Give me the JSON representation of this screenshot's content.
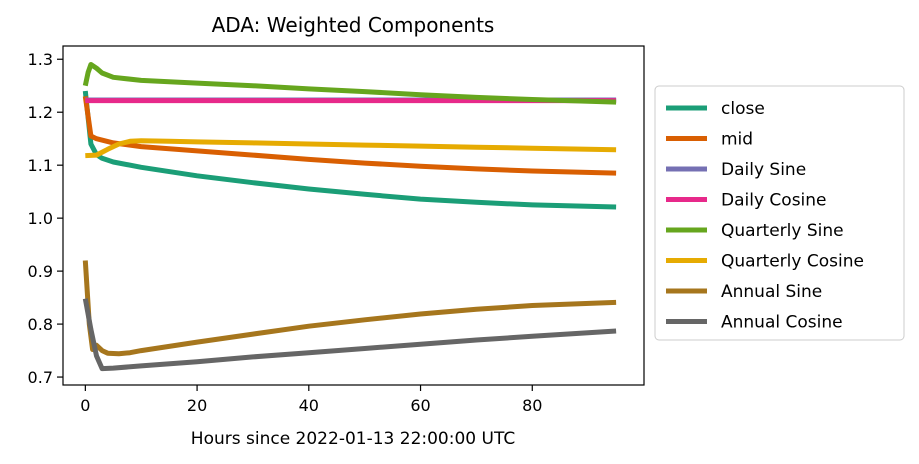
{
  "chart_data": {
    "type": "line",
    "title": "ADA: Weighted Components",
    "xlabel": "Hours since 2022-01-13 22:00:00 UTC",
    "ylabel": "",
    "xlim": [
      -4,
      100
    ],
    "ylim": [
      0.685,
      1.325
    ],
    "xticks": [
      0,
      20,
      40,
      60,
      80
    ],
    "yticks": [
      0.7,
      0.8,
      0.9,
      1.0,
      1.1,
      1.2,
      1.3
    ],
    "xtick_labels": [
      "0",
      "20",
      "40",
      "60",
      "80"
    ],
    "ytick_labels": [
      "0.7",
      "0.8",
      "0.9",
      "1.0",
      "1.1",
      "1.2",
      "1.3"
    ],
    "grid": false,
    "legend_position": "outside-right",
    "series": [
      {
        "name": "close",
        "color": "#1b9e77",
        "points": [
          [
            0,
            1.24
          ],
          [
            1,
            1.14
          ],
          [
            2,
            1.12
          ],
          [
            3,
            1.113
          ],
          [
            5,
            1.106
          ],
          [
            10,
            1.096
          ],
          [
            20,
            1.08
          ],
          [
            30,
            1.067
          ],
          [
            40,
            1.055
          ],
          [
            50,
            1.045
          ],
          [
            60,
            1.036
          ],
          [
            70,
            1.03
          ],
          [
            80,
            1.025
          ],
          [
            95,
            1.021
          ]
        ]
      },
      {
        "name": "mid",
        "color": "#d95f02",
        "points": [
          [
            0,
            1.23
          ],
          [
            1,
            1.155
          ],
          [
            2,
            1.15
          ],
          [
            5,
            1.142
          ],
          [
            10,
            1.135
          ],
          [
            20,
            1.127
          ],
          [
            30,
            1.119
          ],
          [
            40,
            1.111
          ],
          [
            50,
            1.104
          ],
          [
            60,
            1.098
          ],
          [
            70,
            1.093
          ],
          [
            80,
            1.089
          ],
          [
            95,
            1.085
          ]
        ]
      },
      {
        "name": "Daily Sine",
        "color": "#7570b3",
        "points": [
          [
            0,
            1.223
          ],
          [
            95,
            1.223
          ]
        ]
      },
      {
        "name": "Daily Cosine",
        "color": "#e7298a",
        "points": [
          [
            0,
            1.222
          ],
          [
            20,
            1.222
          ],
          [
            40,
            1.222
          ],
          [
            60,
            1.222
          ],
          [
            80,
            1.222
          ],
          [
            95,
            1.222
          ]
        ]
      },
      {
        "name": "Quarterly Sine",
        "color": "#66a61e",
        "points": [
          [
            0,
            1.25
          ],
          [
            0.5,
            1.275
          ],
          [
            1,
            1.29
          ],
          [
            2,
            1.283
          ],
          [
            3,
            1.274
          ],
          [
            5,
            1.266
          ],
          [
            10,
            1.26
          ],
          [
            20,
            1.255
          ],
          [
            30,
            1.25
          ],
          [
            40,
            1.244
          ],
          [
            50,
            1.239
          ],
          [
            60,
            1.233
          ],
          [
            70,
            1.228
          ],
          [
            80,
            1.224
          ],
          [
            95,
            1.219
          ]
        ]
      },
      {
        "name": "Quarterly Cosine",
        "color": "#e6ab02",
        "points": [
          [
            0,
            1.118
          ],
          [
            2,
            1.119
          ],
          [
            4,
            1.13
          ],
          [
            6,
            1.14
          ],
          [
            8,
            1.145
          ],
          [
            10,
            1.146
          ],
          [
            15,
            1.145
          ],
          [
            20,
            1.144
          ],
          [
            30,
            1.142
          ],
          [
            40,
            1.14
          ],
          [
            50,
            1.138
          ],
          [
            60,
            1.136
          ],
          [
            70,
            1.134
          ],
          [
            80,
            1.132
          ],
          [
            95,
            1.129
          ]
        ]
      },
      {
        "name": "Annual Sine",
        "color": "#a6761d",
        "points": [
          [
            0,
            0.92
          ],
          [
            0.7,
            0.8
          ],
          [
            1.3,
            0.752
          ],
          [
            2,
            0.76
          ],
          [
            3,
            0.75
          ],
          [
            4,
            0.745
          ],
          [
            6,
            0.744
          ],
          [
            8,
            0.746
          ],
          [
            10,
            0.75
          ],
          [
            20,
            0.766
          ],
          [
            30,
            0.781
          ],
          [
            40,
            0.796
          ],
          [
            50,
            0.808
          ],
          [
            60,
            0.819
          ],
          [
            70,
            0.828
          ],
          [
            80,
            0.835
          ],
          [
            95,
            0.841
          ]
        ]
      },
      {
        "name": "Annual Cosine",
        "color": "#666666",
        "points": [
          [
            0,
            0.848
          ],
          [
            1,
            0.79
          ],
          [
            2,
            0.74
          ],
          [
            3,
            0.716
          ],
          [
            5,
            0.717
          ],
          [
            10,
            0.721
          ],
          [
            20,
            0.729
          ],
          [
            30,
            0.738
          ],
          [
            40,
            0.746
          ],
          [
            50,
            0.754
          ],
          [
            60,
            0.762
          ],
          [
            70,
            0.77
          ],
          [
            80,
            0.777
          ],
          [
            95,
            0.787
          ]
        ]
      }
    ]
  }
}
